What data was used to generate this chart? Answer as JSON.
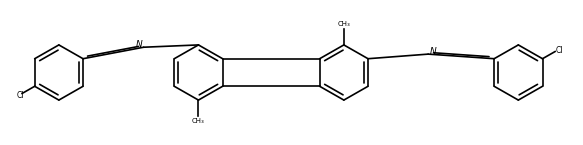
{
  "bg_color": "#ffffff",
  "line_color": "#000000",
  "line_width": 1.2,
  "figsize": [
    5.83,
    1.45
  ],
  "dpi": 100,
  "xlim": [
    0,
    100
  ],
  "ylim": [
    0,
    25
  ]
}
